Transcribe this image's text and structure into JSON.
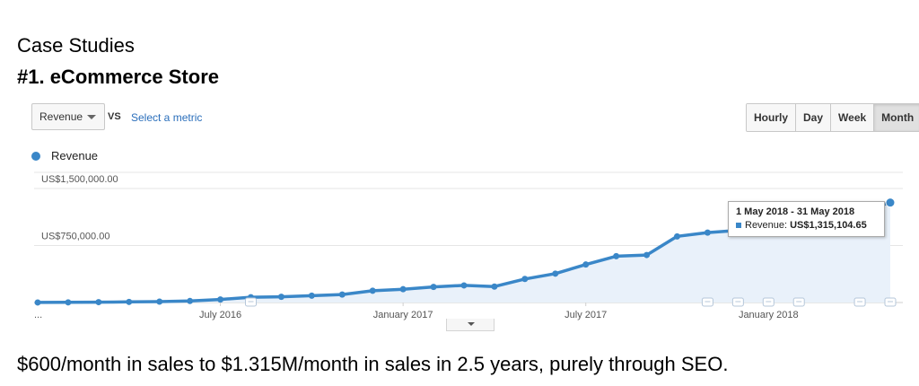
{
  "heading": {
    "line1": "Case Studies",
    "line2": "#1. eCommerce Store"
  },
  "controls": {
    "metric_select": "Revenue",
    "vs_label": "VS",
    "select_metric_link": "Select a metric",
    "range_buttons": [
      "Hourly",
      "Day",
      "Week",
      "Month"
    ],
    "active_range": "Month"
  },
  "caption": "$600/month in sales to $1.315M/month in sales in 2.5 years, purely through SEO.",
  "chart_data": {
    "type": "area",
    "legend": [
      "Revenue"
    ],
    "series": [
      {
        "name": "Revenue",
        "color": "#3a87c8",
        "x": [
          "2016-01",
          "2016-02",
          "2016-03",
          "2016-04",
          "2016-05",
          "2016-06",
          "2016-07",
          "2016-08",
          "2016-09",
          "2016-10",
          "2016-11",
          "2016-12",
          "2017-01",
          "2017-02",
          "2017-03",
          "2017-04",
          "2017-05",
          "2017-06",
          "2017-07",
          "2017-08",
          "2017-09",
          "2017-10",
          "2017-11",
          "2017-12",
          "2018-01",
          "2018-02",
          "2018-03",
          "2018-04",
          "2018-05"
        ],
        "values": [
          600,
          2000,
          5000,
          8000,
          12000,
          20000,
          40000,
          70000,
          75000,
          90000,
          105000,
          155000,
          175000,
          205000,
          225000,
          210000,
          310000,
          380000,
          500000,
          610000,
          625000,
          870000,
          920000,
          950000,
          1000000,
          1060000,
          1120000,
          1200000,
          1315104.65
        ]
      }
    ],
    "y_ticks": [
      "US$750,000.00",
      "US$1,500,000.00"
    ],
    "y_tick_values": [
      750000,
      1500000
    ],
    "ylim": [
      0,
      1500000
    ],
    "x_tick_labels": [
      "...",
      "July 2016",
      "January 2017",
      "July 2017",
      "January 2018"
    ],
    "grid": true,
    "legend_placement": "top-left",
    "tooltip": {
      "date_range": "1 May 2018 - 31 May 2018",
      "label": "Revenue:",
      "value": "US$1,315,104.65"
    }
  }
}
